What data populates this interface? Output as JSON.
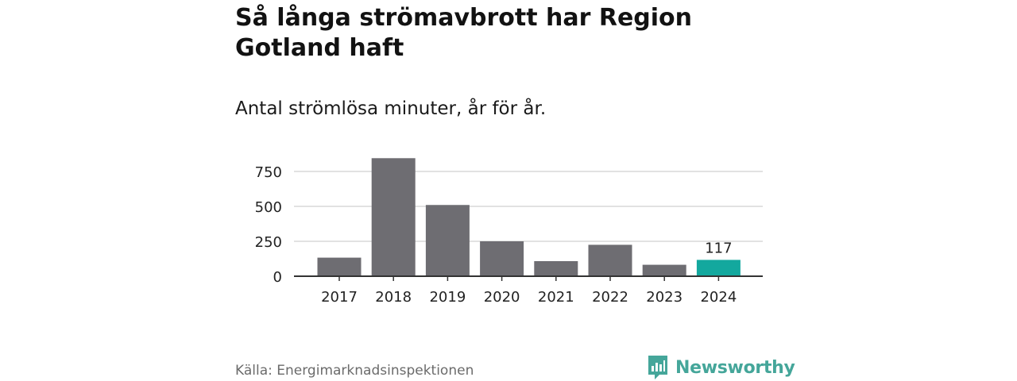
{
  "title": "Så långa strömavbrott har Region Gotland haft",
  "subtitle": "Antal strömlösa minuter, år för år.",
  "source": "Källa: Energimarknadsinspektionen",
  "brand": {
    "name": "Newsworthy",
    "icon": "newsworthy-logo-icon"
  },
  "colors": {
    "bar": "#6e6d72",
    "highlight": "#13a89e",
    "grid": "#d9d9d9",
    "axis": "#333333",
    "brand": "#45a69a"
  },
  "chart_data": {
    "type": "bar",
    "title": "Så långa strömavbrott har Region Gotland haft",
    "subtitle": "Antal strömlösa minuter, år för år.",
    "xlabel": "",
    "ylabel": "",
    "categories": [
      "2017",
      "2018",
      "2019",
      "2020",
      "2021",
      "2022",
      "2023",
      "2024"
    ],
    "values": [
      133,
      845,
      510,
      250,
      108,
      225,
      82,
      117
    ],
    "highlight_index": 7,
    "data_labels": [
      {
        "index": 7,
        "text": "117"
      }
    ],
    "yticks": [
      0,
      250,
      500,
      750
    ],
    "ylim": [
      0,
      860
    ],
    "grid": true,
    "legend": "none"
  }
}
